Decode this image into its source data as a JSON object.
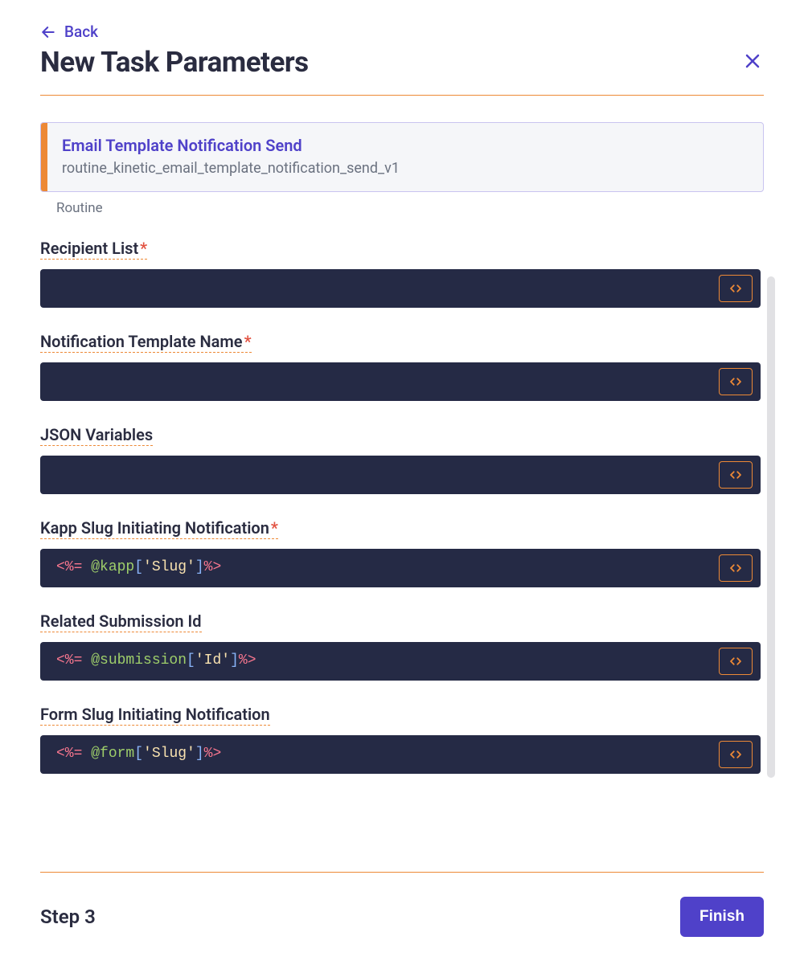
{
  "colors": {
    "accent_purple": "#4f41c9",
    "accent_orange": "#ed8936",
    "text_dark": "#2a2c40",
    "text_muted": "#6b7280",
    "code_bg": "#252a45",
    "panel_bg": "#f5f6f9",
    "panel_border": "#c9c4f0",
    "required": "#e25241",
    "scrollbar": "#e1e1e4",
    "syntax_tag": "#f7768e",
    "syntax_var": "#9ece6a",
    "syntax_bracket": "#89b4f8",
    "syntax_string": "#f9e2af"
  },
  "header": {
    "back_label": "Back",
    "title": "New Task Parameters"
  },
  "routine": {
    "title": "Email Template Notification Send",
    "slug": "routine_kinetic_email_template_notification_send_v1",
    "caption": "Routine"
  },
  "fields": [
    {
      "label": "Recipient List",
      "required": true,
      "code": null
    },
    {
      "label": "Notification Template Name",
      "required": true,
      "code": null
    },
    {
      "label": "JSON Variables",
      "required": false,
      "code": null
    },
    {
      "label": "Kapp Slug Initiating Notification",
      "required": true,
      "code": {
        "open": "<%=",
        "var": "@kapp",
        "lbr": "[",
        "str": "'Slug'",
        "rbr": "]",
        "close": "%>"
      }
    },
    {
      "label": "Related Submission Id",
      "required": false,
      "code": {
        "open": "<%=",
        "var": "@submission",
        "lbr": "[",
        "str": "'Id'",
        "rbr": "]",
        "close": "%>"
      }
    },
    {
      "label": "Form Slug Initiating Notification",
      "required": false,
      "code": {
        "open": "<%=",
        "var": "@form",
        "lbr": "[",
        "str": "'Slug'",
        "rbr": "]",
        "close": "%>"
      }
    }
  ],
  "footer": {
    "step_label": "Step 3",
    "finish_label": "Finish"
  }
}
